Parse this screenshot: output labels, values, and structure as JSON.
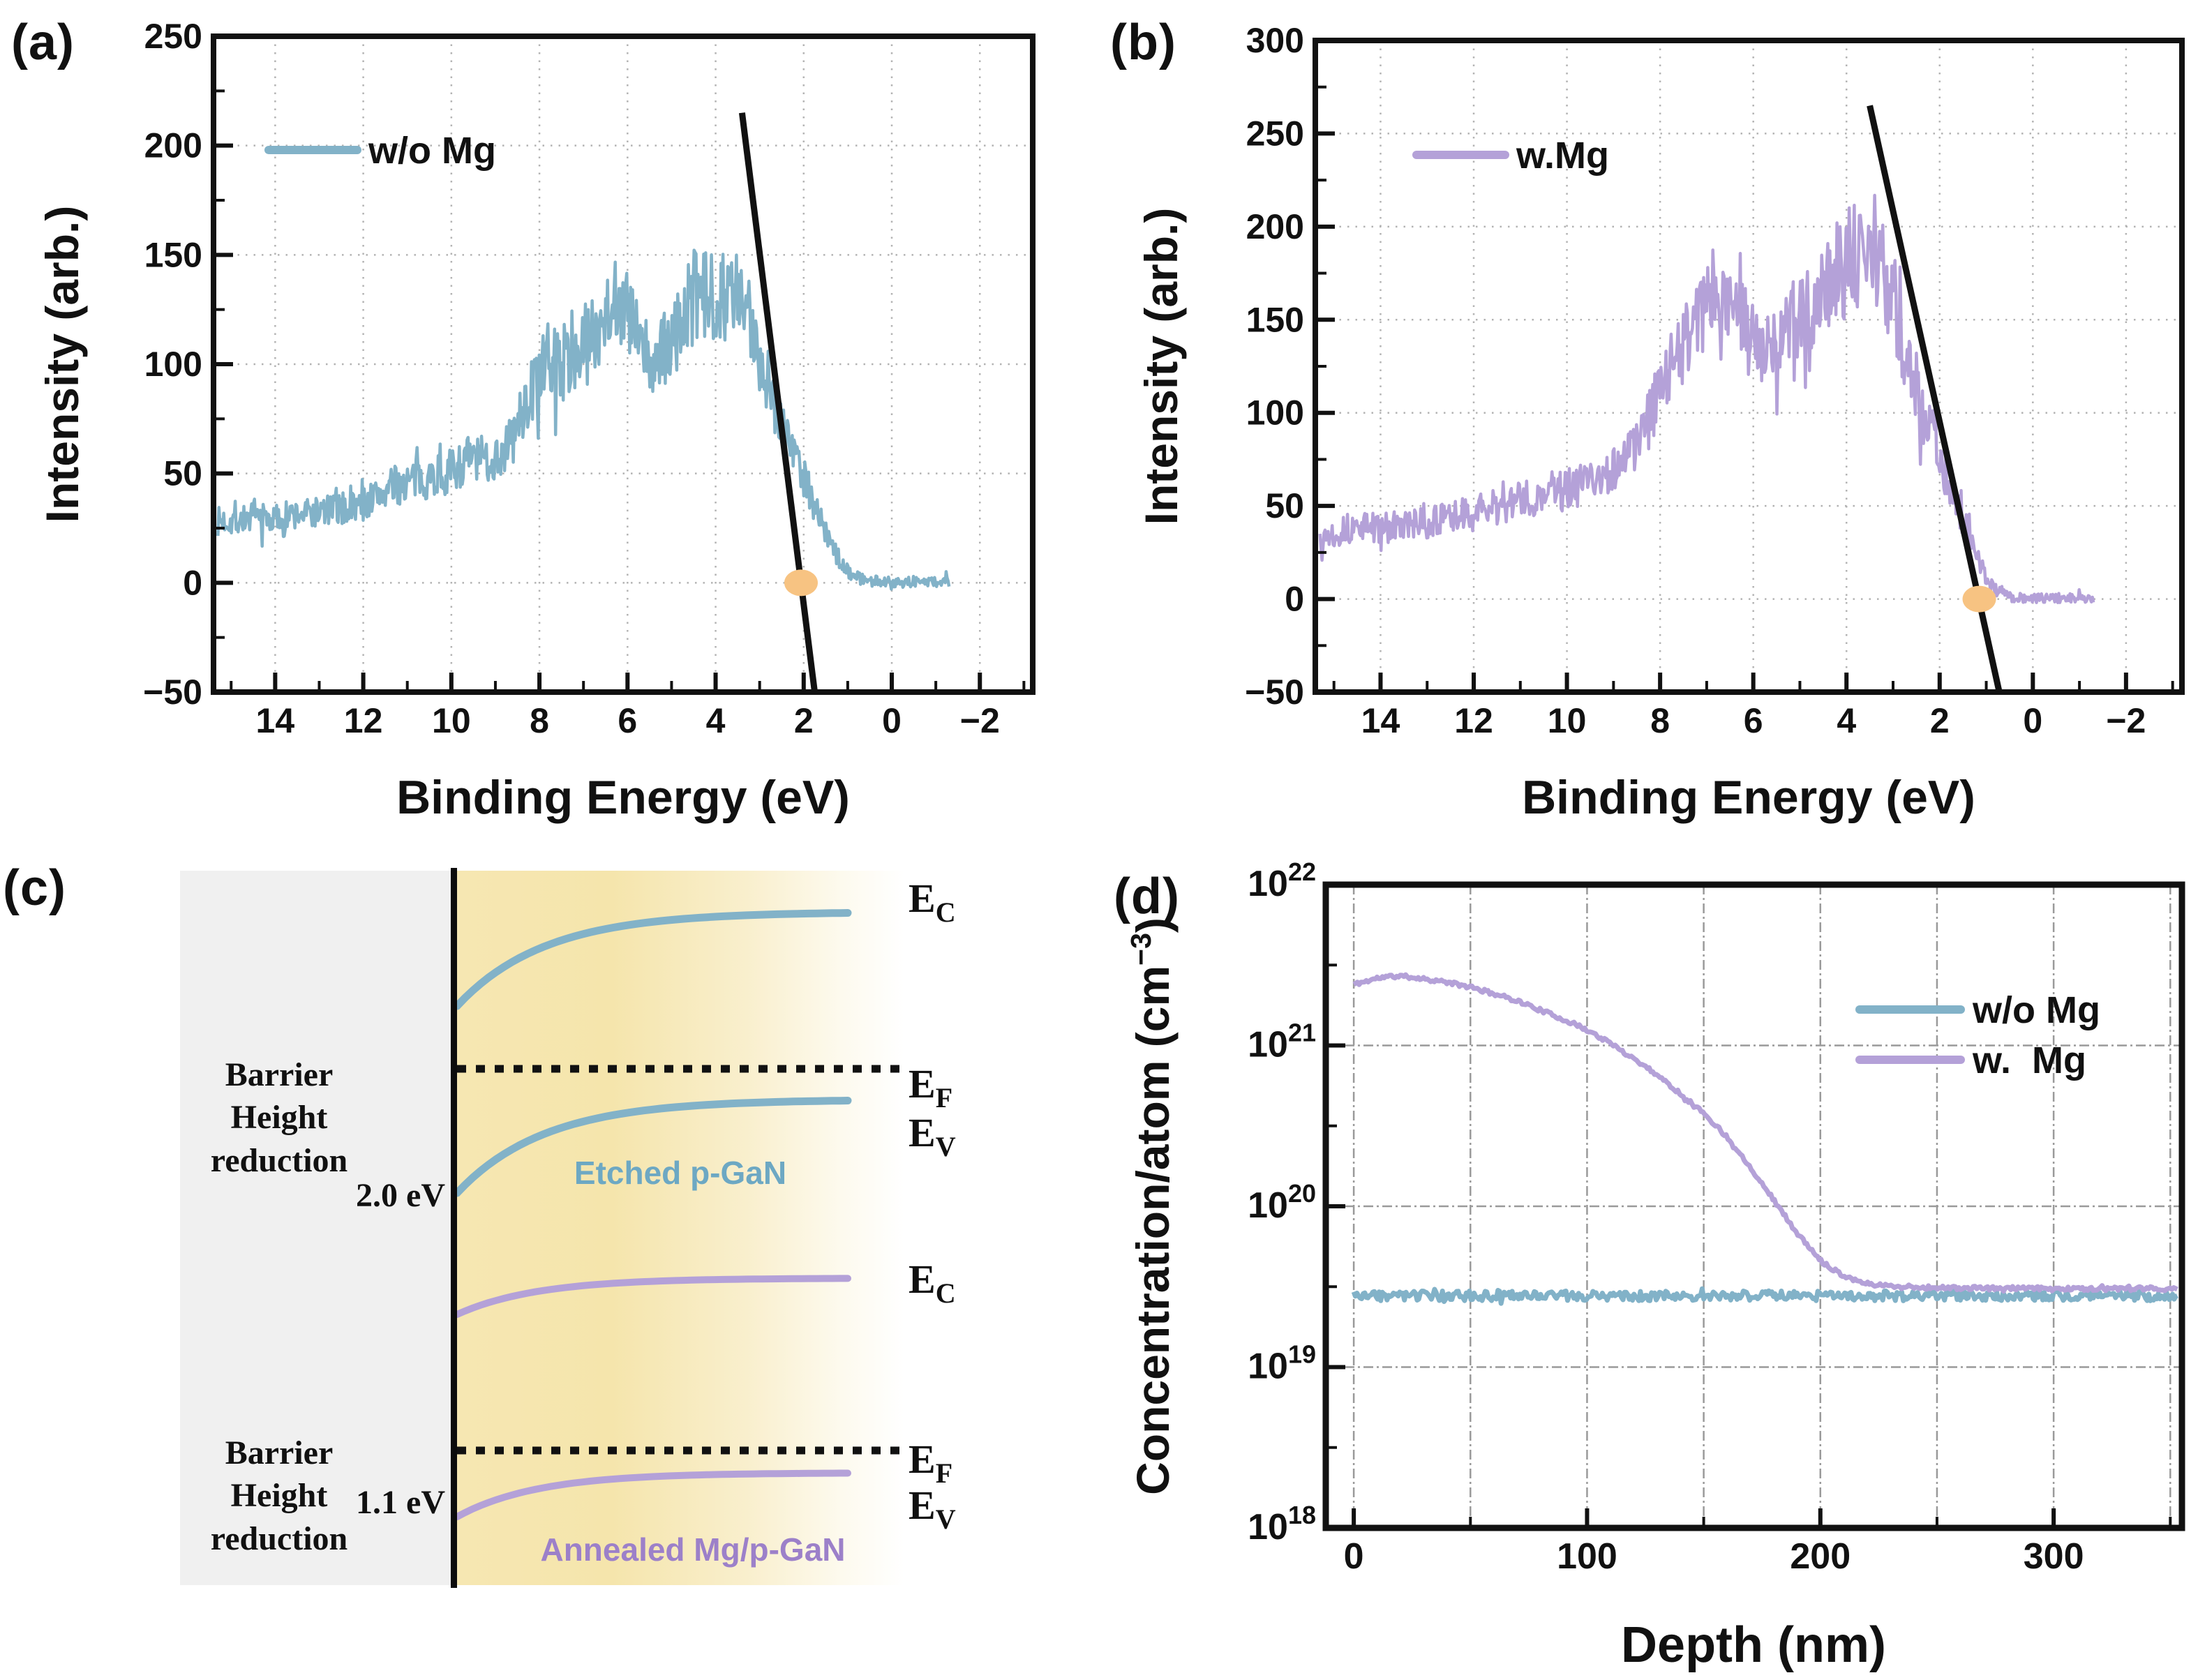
{
  "colors": {
    "teal": "#82b2c8",
    "purple": "#b4a1d8",
    "orange": "#f7c382",
    "black": "#111111",
    "grid_dot": "#b3b3b3",
    "grid_dashdot": "#9a9a9a",
    "gray_box": "#f0f0f0",
    "etched_text": "#6da8c3",
    "annealed_text": "#9c80c9"
  },
  "panels": {
    "a": {
      "letter": "(a)"
    },
    "b": {
      "letter": "(b)"
    },
    "c": {
      "letter": "(c)"
    },
    "d": {
      "letter": "(d)"
    }
  },
  "diagram_c": {
    "barrier_lines": [
      "Barrier",
      "Height",
      "reduction"
    ],
    "band_labels": {
      "e": "E",
      "c": "C",
      "f": "F",
      "v": "V"
    },
    "top": {
      "value": "2.0 eV",
      "region": "Etched p-GaN"
    },
    "bottom": {
      "value": "1.1 eV",
      "region": "Annealed Mg/p-GaN"
    },
    "curves": [
      {
        "x0": 655,
        "x1": 1215,
        "y0": 238,
        "y1": 103,
        "tau": 125,
        "color": "teal",
        "w": 11
      },
      {
        "x0": 655,
        "x1": 1215,
        "y0": 506,
        "y1": 372,
        "tau": 125,
        "color": "teal",
        "w": 11
      },
      {
        "x0": 655,
        "x1": 1215,
        "y0": 680,
        "y1": 628,
        "tau": 115,
        "color": "purple",
        "w": 10
      },
      {
        "x0": 655,
        "x1": 1215,
        "y0": 970,
        "y1": 907,
        "tau": 115,
        "color": "purple",
        "w": 10
      }
    ],
    "fermi_lines": [
      {
        "x0": 655,
        "x1": 1292,
        "y": 328
      },
      {
        "x0": 655,
        "x1": 1292,
        "y": 875
      }
    ]
  },
  "chart_data": [
    {
      "id": "chart-a",
      "type": "line",
      "yscale": "lin",
      "plot": {
        "x0": 306,
        "y0": 52,
        "x1": 1480,
        "y1": 992
      },
      "xlim": [
        15.4,
        -3.2
      ],
      "ylim": [
        -50,
        250
      ],
      "spine_width": 8,
      "xlabel": "Binding Energy (eV)",
      "xlabel_pos": [
        893,
        1166
      ],
      "xlabel_size": 68,
      "ylabel_parts": [
        {
          "t": "Intensity (arb.)"
        }
      ],
      "ylabel_pos": [
        112,
        522
      ],
      "ylabel_size": 66,
      "tick_size": 50,
      "xticks": {
        "values": [
          14,
          12,
          10,
          8,
          6,
          4,
          2,
          0,
          -2
        ],
        "labels": [
          "14",
          "12",
          "10",
          "8",
          "6",
          "4",
          "2",
          "0",
          "−2"
        ]
      },
      "xminor": [
        15,
        13,
        11,
        9,
        7,
        5,
        3,
        1,
        -1,
        -3
      ],
      "yticks": {
        "values": [
          -50,
          0,
          50,
          100,
          150,
          200,
          250
        ],
        "labels": [
          "−50",
          "0",
          "50",
          "100",
          "150",
          "200",
          "250"
        ]
      },
      "yminor": [
        -25,
        25,
        75,
        125,
        175,
        225
      ],
      "grid_x": [
        14,
        12,
        10,
        8,
        6,
        4,
        2,
        0,
        -2
      ],
      "grid_y": [
        0,
        50,
        100,
        150,
        200
      ],
      "grid_style": "dot",
      "legend": {
        "entries": [
          {
            "label": "w/o Mg",
            "color": "teal",
            "y": 215
          }
        ],
        "lx0": 385,
        "lx1": 512,
        "tx": 528,
        "text_size": 54
      },
      "series": [
        {
          "name": "w/o Mg",
          "color": "teal",
          "width": 4.5,
          "seed": 7,
          "points": 760,
          "xstart": 15.3,
          "xend": -1.3,
          "noise_base": 2.5,
          "noise_prop": 0.15,
          "envelope": [
            [
              15.3,
              28
            ],
            [
              14.8,
              29
            ],
            [
              14.4,
              30
            ],
            [
              14.0,
              29
            ],
            [
              13.6,
              31
            ],
            [
              13.2,
              32
            ],
            [
              12.8,
              33
            ],
            [
              12.4,
              34
            ],
            [
              12.0,
              36
            ],
            [
              11.6,
              41
            ],
            [
              11.2,
              45
            ],
            [
              10.8,
              47
            ],
            [
              10.4,
              49
            ],
            [
              10.0,
              51
            ],
            [
              9.6,
              57
            ],
            [
              9.2,
              56
            ],
            [
              8.9,
              58
            ],
            [
              8.6,
              66
            ],
            [
              8.3,
              82
            ],
            [
              8.0,
              95
            ],
            [
              7.7,
              101
            ],
            [
              7.4,
              101
            ],
            [
              7.1,
              106
            ],
            [
              6.8,
              112
            ],
            [
              6.5,
              126
            ],
            [
              6.2,
              131
            ],
            [
              5.95,
              121
            ],
            [
              5.7,
              107
            ],
            [
              5.45,
              100
            ],
            [
              5.2,
              104
            ],
            [
              4.95,
              112
            ],
            [
              4.7,
              122
            ],
            [
              4.5,
              131
            ],
            [
              4.3,
              129
            ],
            [
              4.1,
              131
            ],
            [
              3.9,
              134
            ],
            [
              3.7,
              132
            ],
            [
              3.5,
              129
            ],
            [
              3.3,
              122
            ],
            [
              3.1,
              112
            ],
            [
              2.9,
              100
            ],
            [
              2.7,
              86
            ],
            [
              2.5,
              74
            ],
            [
              2.3,
              64
            ],
            [
              2.1,
              55
            ],
            [
              1.9,
              44
            ],
            [
              1.7,
              33
            ],
            [
              1.5,
              23
            ],
            [
              1.3,
              14
            ],
            [
              1.1,
              8
            ],
            [
              0.9,
              4
            ],
            [
              0.7,
              2
            ],
            [
              0.5,
              1
            ],
            [
              0.3,
              0.5
            ],
            [
              0.0,
              0.5
            ],
            [
              -1.3,
              0.5
            ]
          ]
        }
      ],
      "fit_lines": [
        {
          "x0": 3.4,
          "y0": 215,
          "x1": 1.75,
          "y1": -50,
          "width": 9
        }
      ],
      "markers": [
        {
          "x": 2.06,
          "y": 0,
          "rx": 24,
          "ry": 19,
          "color": "orange"
        }
      ]
    },
    {
      "id": "chart-b",
      "type": "line",
      "yscale": "lin",
      "plot": {
        "x0": 310,
        "y0": 58,
        "x1": 1552,
        "y1": 992
      },
      "xlim": [
        15.4,
        -3.2
      ],
      "ylim": [
        -50,
        300
      ],
      "spine_width": 8,
      "xlabel": "Binding Energy (eV)",
      "xlabel_pos": [
        931,
        1166
      ],
      "xlabel_size": 68,
      "ylabel_parts": [
        {
          "t": "Intensity (arb.)"
        }
      ],
      "ylabel_pos": [
        112,
        525
      ],
      "ylabel_size": 66,
      "tick_size": 50,
      "xticks": {
        "values": [
          14,
          12,
          10,
          8,
          6,
          4,
          2,
          0,
          -2
        ],
        "labels": [
          "14",
          "12",
          "10",
          "8",
          "6",
          "4",
          "2",
          "0",
          "−2"
        ]
      },
      "xminor": [
        15,
        13,
        11,
        9,
        7,
        5,
        3,
        1,
        -1,
        -3
      ],
      "yticks": {
        "values": [
          -50,
          0,
          50,
          100,
          150,
          200,
          250,
          300
        ],
        "labels": [
          "−50",
          "0",
          "50",
          "100",
          "150",
          "200",
          "250",
          "300"
        ]
      },
      "yminor": [
        -25,
        25,
        75,
        125,
        175,
        225,
        275
      ],
      "grid_x": [
        14,
        12,
        10,
        8,
        6,
        4,
        2,
        0,
        -2
      ],
      "grid_y": [
        0,
        50,
        100,
        150,
        200,
        250
      ],
      "grid_style": "dot",
      "legend": {
        "entries": [
          {
            "label": "w.Mg",
            "color": "purple",
            "y": 222
          }
        ],
        "lx0": 455,
        "lx1": 582,
        "tx": 598,
        "text_size": 54
      },
      "series": [
        {
          "name": "w.Mg",
          "color": "purple",
          "width": 4.5,
          "seed": 13,
          "points": 760,
          "xstart": 15.3,
          "xend": -1.3,
          "noise_base": 2.5,
          "noise_prop": 0.15,
          "envelope": [
            [
              15.3,
              34
            ],
            [
              14.8,
              37
            ],
            [
              14.4,
              39
            ],
            [
              14.0,
              38
            ],
            [
              13.6,
              39
            ],
            [
              13.2,
              40
            ],
            [
              12.8,
              42
            ],
            [
              12.4,
              44
            ],
            [
              12.0,
              46
            ],
            [
              11.6,
              49
            ],
            [
              11.2,
              52
            ],
            [
              10.8,
              54
            ],
            [
              10.4,
              56
            ],
            [
              10.0,
              59
            ],
            [
              9.6,
              62
            ],
            [
              9.2,
              67
            ],
            [
              8.9,
              72
            ],
            [
              8.6,
              80
            ],
            [
              8.3,
              92
            ],
            [
              8.0,
              110
            ],
            [
              7.7,
              128
            ],
            [
              7.4,
              146
            ],
            [
              7.15,
              156
            ],
            [
              6.95,
              160
            ],
            [
              6.75,
              154
            ],
            [
              6.55,
              150
            ],
            [
              6.35,
              151
            ],
            [
              6.15,
              146
            ],
            [
              5.95,
              140
            ],
            [
              5.75,
              133
            ],
            [
              5.55,
              136
            ],
            [
              5.35,
              141
            ],
            [
              5.15,
              146
            ],
            [
              4.95,
              151
            ],
            [
              4.75,
              156
            ],
            [
              4.55,
              168
            ],
            [
              4.35,
              172
            ],
            [
              4.15,
              177
            ],
            [
              3.95,
              182
            ],
            [
              3.75,
              186
            ],
            [
              3.55,
              191
            ],
            [
              3.35,
              186
            ],
            [
              3.15,
              172
            ],
            [
              2.95,
              156
            ],
            [
              2.75,
              136
            ],
            [
              2.55,
              117
            ],
            [
              2.35,
              101
            ],
            [
              2.15,
              89
            ],
            [
              1.95,
              74
            ],
            [
              1.75,
              59
            ],
            [
              1.55,
              46
            ],
            [
              1.35,
              32
            ],
            [
              1.15,
              20
            ],
            [
              0.95,
              9
            ],
            [
              0.75,
              4
            ],
            [
              0.55,
              1.5
            ],
            [
              0.35,
              0.5
            ],
            [
              0.0,
              0.5
            ],
            [
              -1.3,
              0.5
            ]
          ]
        }
      ],
      "fit_lines": [
        {
          "x0": 3.5,
          "y0": 265,
          "x1": 0.72,
          "y1": -50,
          "width": 9
        }
      ],
      "markers": [
        {
          "x": 1.15,
          "y": 0,
          "rx": 24,
          "ry": 19,
          "color": "orange"
        }
      ]
    },
    {
      "id": "chart-d",
      "type": "line",
      "yscale": "log",
      "plot": {
        "x0": 325,
        "y0": 64,
        "x1": 1552,
        "y1": 986
      },
      "xlim": [
        -12,
        355
      ],
      "ylim": [
        18,
        22
      ],
      "spine_width": 9,
      "xlabel": "Depth (nm)",
      "xlabel_pos": [
        938,
        1178
      ],
      "xlabel_size": 72,
      "ylabel_parts": [
        {
          "t": "Concentration/atom (cm"
        },
        {
          "t": "−3",
          "sup": true
        },
        {
          "t": ")"
        }
      ],
      "ylabel_pos": [
        100,
        525
      ],
      "ylabel_size": 66,
      "tick_size": 52,
      "ytick_exp_size": 36,
      "xticks": {
        "values": [
          0,
          100,
          200,
          300
        ],
        "labels": [
          "0",
          "100",
          "200",
          "300"
        ]
      },
      "xminor": [
        50,
        150,
        250,
        350
      ],
      "yticks": {
        "values": [
          18,
          19,
          20,
          21,
          22
        ],
        "labels": [
          "10^18",
          "10^19",
          "10^20",
          "10^21",
          "10^22"
        ]
      },
      "yminor": [
        18.5,
        19.5,
        20.5,
        21.5
      ],
      "grid_x": [
        0,
        50,
        100,
        150,
        200,
        250,
        300,
        350
      ],
      "grid_y": [
        19,
        20,
        21
      ],
      "grid_style": "dashdot",
      "legend": {
        "entries": [
          {
            "label": "w/o Mg",
            "color": "teal",
            "y": 243
          },
          {
            "label": "w.  Mg",
            "color": "purple",
            "y": 315
          }
        ],
        "lx0": 1090,
        "lx1": 1235,
        "tx": 1252,
        "text_size": 54
      },
      "series": [
        {
          "name": "w/o Mg",
          "color": "teal",
          "width": 7,
          "seed": 3,
          "points": 520,
          "xstart": 0,
          "xend": 353,
          "noise_mult": 0.14,
          "envelope": [
            [
              0,
              2.78e+19
            ],
            [
              353,
              2.78e+19
            ]
          ]
        },
        {
          "name": "w. Mg",
          "color": "purple",
          "width": 7,
          "seed": 11,
          "points": 460,
          "xstart": 0,
          "xend": 353,
          "noise_mult": 0.055,
          "envelope": [
            [
              0,
              2.4e+21
            ],
            [
              5,
              2.5e+21
            ],
            [
              10,
              2.62e+21
            ],
            [
              15,
              2.68e+21
            ],
            [
              20,
              2.7e+21
            ],
            [
              25,
              2.66e+21
            ],
            [
              30,
              2.6e+21
            ],
            [
              40,
              2.47e+21
            ],
            [
              50,
              2.3e+21
            ],
            [
              60,
              2.1e+21
            ],
            [
              70,
              1.9e+21
            ],
            [
              80,
              1.66e+21
            ],
            [
              90,
              1.45e+21
            ],
            [
              100,
              1.25e+21
            ],
            [
              110,
              1.03e+21
            ],
            [
              120,
              8.3e+20
            ],
            [
              130,
              6.6e+20
            ],
            [
              140,
              5e+20
            ],
            [
              150,
              3.8e+20
            ],
            [
              160,
              2.7e+20
            ],
            [
              170,
              1.75e+20
            ],
            [
              180,
              1.1e+20
            ],
            [
              190,
              6.8e+19
            ],
            [
              200,
              4.6e+19
            ],
            [
              210,
              3.7e+19
            ],
            [
              220,
              3.3e+19
            ],
            [
              235,
              3.15e+19
            ],
            [
              260,
              3.1e+19
            ],
            [
              300,
              3.08e+19
            ],
            [
              353,
              3.05e+19
            ]
          ]
        }
      ],
      "fit_lines": [],
      "markers": []
    }
  ]
}
